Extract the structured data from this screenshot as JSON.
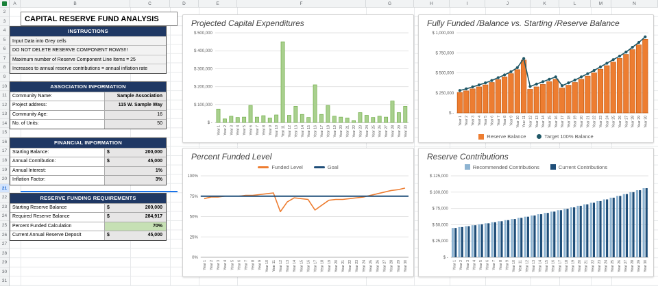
{
  "sheet": {
    "column_letters": [
      "A",
      "B",
      "C",
      "D",
      "E",
      "F",
      "G",
      "H",
      "I",
      "J",
      "K",
      "L",
      "M",
      "N"
    ],
    "row_numbers": [
      2,
      3,
      4,
      5,
      6,
      7,
      8,
      9,
      10,
      11,
      12,
      13,
      14,
      15,
      16,
      17,
      18,
      19,
      20,
      21,
      22,
      23,
      24,
      25,
      26,
      27,
      28,
      29,
      30,
      31
    ],
    "selected_row": 21
  },
  "panel": {
    "title": "CAPITAL RESERVE FUND ANALYSIS",
    "instructions": {
      "header": "INSTRUCTIONS",
      "lines": [
        "Input Data into Grey cells",
        "DO NOT DELETE RESERVE COMPONENT ROWS!!!",
        "Maximum number of Reserve Component Line Items = 25",
        "Increases to annual reserve contributions = annual inflation rate"
      ]
    },
    "association": {
      "header": "ASSOCIATION INFORMATION",
      "rows": [
        {
          "label": "Community Name:",
          "value": "Sample Association"
        },
        {
          "label": "Project address:",
          "value": "115 W. Sample Way"
        },
        {
          "label": "Community Age:",
          "value": "16"
        },
        {
          "label": "No. of Units:",
          "value": "50"
        }
      ]
    },
    "financial": {
      "header": "FINANCIAL INFORMATION",
      "rows": [
        {
          "label": "Starting Balance:",
          "prefix": "$",
          "value": "200,000"
        },
        {
          "label": "Annual Contribution:",
          "prefix": "$",
          "value": "45,000"
        },
        {
          "label": "Annual Interest:",
          "value": "1%"
        },
        {
          "label": "Inflation Factor:",
          "value": "3%"
        }
      ]
    },
    "requirements": {
      "header": "RESERVE FUNDING REQUIREMENTS",
      "rows": [
        {
          "label": "Starting Reserve Balance",
          "prefix": "$",
          "value": "200,000"
        },
        {
          "label": "Required Reserve Balance",
          "prefix": "$",
          "value": "284,917"
        },
        {
          "label": "Percent Funded Calculation",
          "value": "70%",
          "highlight": true
        },
        {
          "label": "Current Annual Reserve Deposit",
          "prefix": "$",
          "value": "45,000"
        }
      ]
    }
  },
  "chart_data": [
    {
      "type": "bar",
      "title": "Projected Capital Expenditures",
      "legend_position": "none",
      "ymax": 500000,
      "yticks": [
        {
          "v": 500000,
          "label": "$ 500,000"
        },
        {
          "v": 400000,
          "label": "$ 400,000"
        },
        {
          "v": 300000,
          "label": "$ 300,000"
        },
        {
          "v": 200000,
          "label": "$ 200,000"
        },
        {
          "v": 100000,
          "label": "$ 100,000"
        },
        {
          "v": 0,
          "label": "$ -"
        }
      ],
      "categories": [
        "Year 1",
        "Year 2",
        "Year 3",
        "Year 4",
        "Year 5",
        "Year 6",
        "Year 7",
        "Year 8",
        "Year 9",
        "Year 10",
        "Year 11",
        "Year 12",
        "Year 13",
        "Year 14",
        "Year 15",
        "Year 16",
        "Year 17",
        "Year 18",
        "Year 19",
        "Year 20",
        "Year 21",
        "Year 22",
        "Year 23",
        "Year 24",
        "Year 25",
        "Year 26",
        "Year 27",
        "Year 28",
        "Year 29",
        "Year 30"
      ],
      "series": [
        {
          "name": "Capital Expenditures",
          "kind": "bar",
          "color": "#a9d08e",
          "stroke": "#70ad47",
          "values": [
            75000,
            20000,
            35000,
            28000,
            30000,
            95000,
            30000,
            38000,
            25000,
            42000,
            450000,
            40000,
            90000,
            45000,
            28000,
            210000,
            45000,
            95000,
            35000,
            30000,
            25000,
            10000,
            55000,
            40000,
            28000,
            35000,
            30000,
            120000,
            55000,
            90000
          ]
        }
      ]
    },
    {
      "type": "bar-line",
      "title": "Fully Funded /Balance vs. Starting /Reserve Balance",
      "legend_position": "bottom",
      "ymax": 1000000,
      "yticks": [
        {
          "v": 1000000,
          "label": "$ 1,000,000"
        },
        {
          "v": 750000,
          "label": "$ 750,000"
        },
        {
          "v": 500000,
          "label": "$ 500,000"
        },
        {
          "v": 250000,
          "label": "$ 250,000"
        },
        {
          "v": 0,
          "label": "$ -"
        }
      ],
      "categories": [
        "Year 1",
        "Year 2",
        "Year 3",
        "Year 4",
        "Year 5",
        "Year 6",
        "Year 7",
        "Year 8",
        "Year 9",
        "Year 10",
        "Year 11",
        "Year 12",
        "Year 13",
        "Year 14",
        "Year 15",
        "Year 16",
        "Year 17",
        "Year 18",
        "Year 19",
        "Year 20",
        "Year 21",
        "Year 22",
        "Year 23",
        "Year 24",
        "Year 25",
        "Year 26",
        "Year 27",
        "Year 28",
        "Year 29",
        "Year 30"
      ],
      "series": [
        {
          "name": "Reserve Balance",
          "kind": "bar",
          "color": "#ed7d31",
          "stroke": "#c55a11",
          "values": [
            255000,
            275000,
            300000,
            325000,
            350000,
            380000,
            415000,
            450000,
            490000,
            540000,
            660000,
            295000,
            325000,
            355000,
            390000,
            420000,
            310000,
            345000,
            380000,
            420000,
            460000,
            500000,
            545000,
            590000,
            635000,
            680000,
            730000,
            790000,
            850000,
            920000
          ]
        },
        {
          "name": "Target 100% Balance",
          "kind": "dotline",
          "color": "#205867",
          "values": [
            280000,
            300000,
            325000,
            350000,
            375000,
            405000,
            440000,
            475000,
            515000,
            565000,
            680000,
            330000,
            360000,
            390000,
            420000,
            450000,
            340000,
            375000,
            410000,
            450000,
            490000,
            530000,
            575000,
            620000,
            665000,
            710000,
            760000,
            820000,
            880000,
            950000
          ]
        }
      ]
    },
    {
      "type": "line",
      "title": "Percent Funded Level",
      "legend_position": "top",
      "ymax": 100,
      "yticks": [
        {
          "v": 100,
          "label": "100%"
        },
        {
          "v": 75,
          "label": "75%"
        },
        {
          "v": 50,
          "label": "50%"
        },
        {
          "v": 25,
          "label": "25%"
        },
        {
          "v": 0,
          "label": "0%"
        }
      ],
      "categories": [
        "Year 1",
        "Year 2",
        "Year 3",
        "Year 4",
        "Year 5",
        "Year 6",
        "Year 7",
        "Year 8",
        "Year 9",
        "Year 10",
        "Year 11",
        "Year 12",
        "Year 13",
        "Year 14",
        "Year 15",
        "Year 16",
        "Year 17",
        "Year 18",
        "Year 19",
        "Year 20",
        "Year 21",
        "Year 22",
        "Year 23",
        "Year 24",
        "Year 25",
        "Year 26",
        "Year 27",
        "Year 28",
        "Year 29",
        "Year 30"
      ],
      "series": [
        {
          "name": "Funded Level",
          "kind": "line",
          "color": "#ed7d31",
          "values": [
            72,
            74,
            74,
            75,
            75,
            75,
            76,
            76,
            77,
            78,
            79,
            56,
            68,
            73,
            72,
            71,
            58,
            64,
            70,
            71,
            71,
            72,
            73,
            74,
            76,
            78,
            80,
            82,
            83,
            85
          ]
        },
        {
          "name": "Goal",
          "kind": "line",
          "color": "#1f4e79",
          "constant": 75
        }
      ]
    },
    {
      "type": "grouped-bar",
      "title": "Reserve Contributions",
      "legend_position": "top",
      "ymax": 125000,
      "yticks": [
        {
          "v": 125000,
          "label": "$ 125,000"
        },
        {
          "v": 100000,
          "label": "$ 100,000"
        },
        {
          "v": 75000,
          "label": "$ 75,000"
        },
        {
          "v": 50000,
          "label": "$ 50,000"
        },
        {
          "v": 25000,
          "label": "$ 25,000"
        },
        {
          "v": 0,
          "label": "$ -"
        }
      ],
      "categories": [
        "Year 1",
        "Year 2",
        "Year 3",
        "Year 4",
        "Year 5",
        "Year 6",
        "Year 7",
        "Year 8",
        "Year 9",
        "Year 10",
        "Year 11",
        "Year 12",
        "Year 13",
        "Year 14",
        "Year 15",
        "Year 16",
        "Year 17",
        "Year 18",
        "Year 19",
        "Year 20",
        "Year 21",
        "Year 22",
        "Year 23",
        "Year 24",
        "Year 25",
        "Year 26",
        "Year 27",
        "Year 28",
        "Year 29",
        "Year 30"
      ],
      "series": [
        {
          "name": "Recommended Contributions",
          "kind": "bar",
          "color": "#8eb4d2",
          "values": [
            45000,
            46350,
            47741,
            49173,
            50648,
            52167,
            53732,
            55344,
            57005,
            58715,
            60476,
            62290,
            64159,
            66084,
            68066,
            70108,
            72212,
            74378,
            76609,
            78908,
            81275,
            83713,
            86224,
            88811,
            91476,
            94220,
            97046,
            99958,
            102956,
            106045
          ]
        },
        {
          "name": "Current Contributions",
          "kind": "bar",
          "color": "#1f4e79",
          "values": [
            45000,
            46350,
            47741,
            49173,
            50648,
            52167,
            53732,
            55344,
            57005,
            58715,
            60476,
            62290,
            64159,
            66084,
            68066,
            70108,
            72212,
            74378,
            76609,
            78908,
            81275,
            83713,
            86224,
            88811,
            91476,
            94220,
            97046,
            99958,
            102956,
            106045
          ]
        }
      ]
    }
  ]
}
